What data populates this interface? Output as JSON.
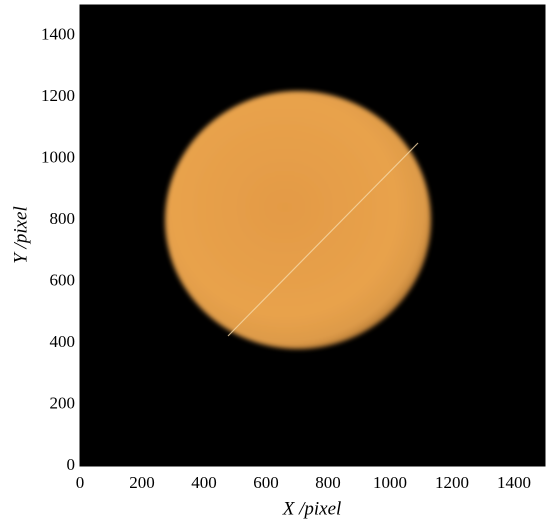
{
  "chart_data": {
    "type": "image",
    "xlabel": "X /pixel",
    "ylabel": "Y /pixel",
    "xlim": [
      0,
      1500
    ],
    "ylim": [
      0,
      1500
    ],
    "xticks": [
      0,
      200,
      400,
      600,
      800,
      1000,
      1200,
      1400
    ],
    "yticks": [
      0,
      200,
      400,
      600,
      800,
      1000,
      1200,
      1400
    ]
  }
}
